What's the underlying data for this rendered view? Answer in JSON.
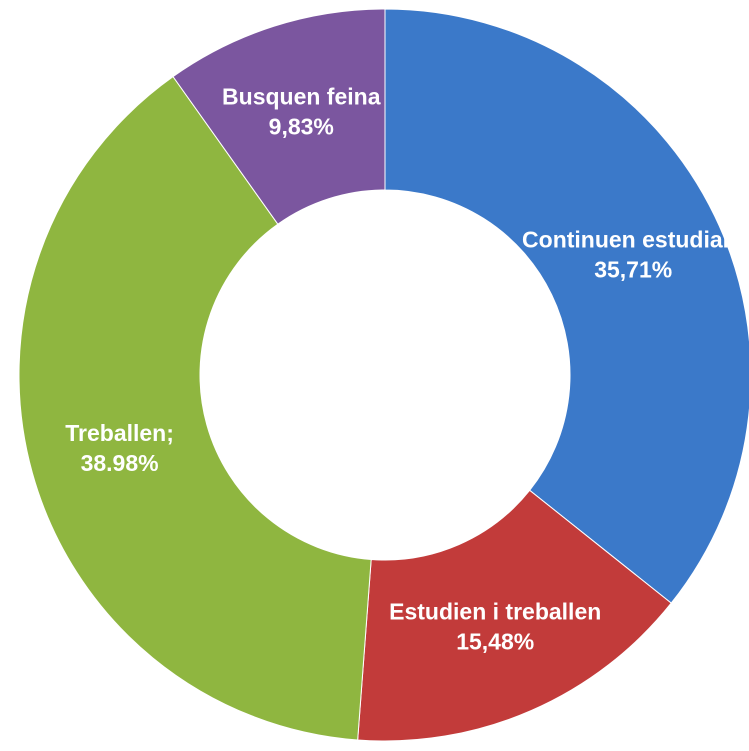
{
  "chart_data": {
    "type": "donut",
    "categories": [
      "Continuen estudiant",
      "Estudien i treballen",
      "Treballen;",
      "Busquen feina"
    ],
    "values": [
      35.71,
      15.48,
      38.98,
      9.83
    ],
    "value_labels": [
      "35,71%",
      "15,48%",
      "38.98%",
      "9,83%"
    ],
    "colors": [
      "#3b79c9",
      "#c23b3a",
      "#8fb640",
      "#7b569f"
    ]
  }
}
